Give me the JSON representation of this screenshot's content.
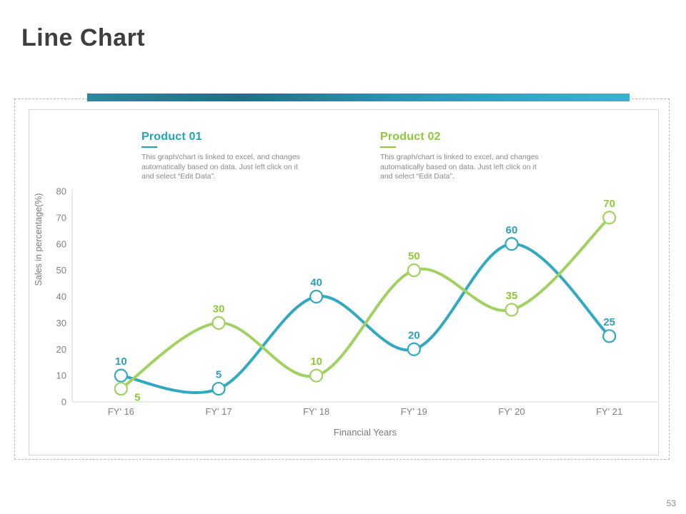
{
  "title": "Line Chart",
  "page_number": "53",
  "accent_color": "#2b9ab5",
  "legends": [
    {
      "name": "Product 01",
      "color": "#1fa6bb",
      "description": "This graph/chart is linked to excel, and changes\nautomatically based on data. Just left click on it\nand select “Edit Data”."
    },
    {
      "name": "Product 02",
      "color": "#8dc63f",
      "description": "This graph/chart is linked to excel, and changes\nautomatically based on data. Just left click on it\nand select “Edit Data”."
    }
  ],
  "chart_data": {
    "type": "line",
    "x": [
      "FY' 16",
      "FY' 17",
      "FY' 18",
      "FY' 19",
      "FY' 20",
      "FY' 21"
    ],
    "series": [
      {
        "name": "Product 01",
        "color": "#31a9c2",
        "label_color": "#2d9fbe",
        "values": [
          10,
          5,
          40,
          20,
          60,
          25
        ]
      },
      {
        "name": "Product 02",
        "color": "#a2d163",
        "label_color": "#8fc73f",
        "values": [
          5,
          30,
          10,
          50,
          35,
          70
        ]
      }
    ],
    "xlabel": "Financial Years",
    "ylabel": "Sales in percentage(%)",
    "ylim": [
      0,
      80
    ],
    "ytick_step": 10,
    "grid": false,
    "smooth": true,
    "markers": "open-circle",
    "data_labels": true,
    "legend_position": "top",
    "axis_color": "#d6d6d6",
    "tick_text_color": "#808080",
    "axis_title_color": "#7a7a7a",
    "label_offset_overrides": [
      {
        "series": 1,
        "point": 0,
        "dx": 23,
        "dy": 17
      }
    ]
  }
}
